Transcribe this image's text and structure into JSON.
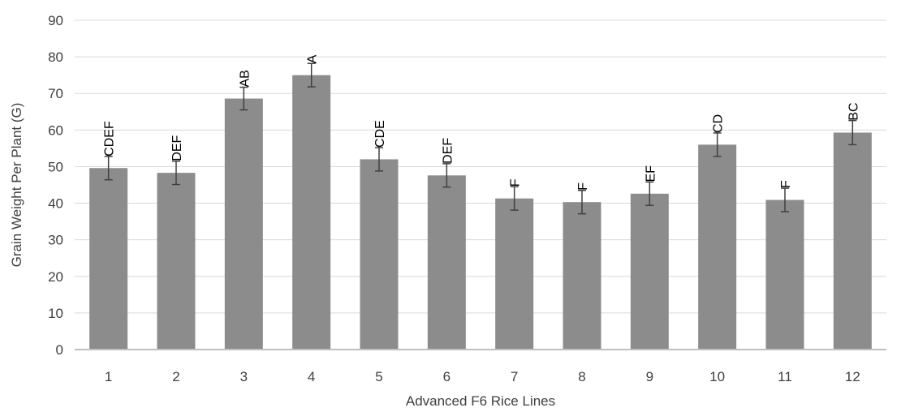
{
  "chart_data": {
    "type": "bar",
    "title": "",
    "xlabel": "Advanced F6 Rice Lines",
    "ylabel": "Grain Weight Per Plant (G)",
    "ylim": [
      0,
      90
    ],
    "yticks": [
      0,
      10,
      20,
      30,
      40,
      50,
      60,
      70,
      80,
      90
    ],
    "grid": true,
    "categories": [
      "1",
      "2",
      "3",
      "4",
      "5",
      "6",
      "7",
      "8",
      "9",
      "10",
      "11",
      "12"
    ],
    "values": [
      49.6,
      48.3,
      68.6,
      75.0,
      52.0,
      47.6,
      41.3,
      40.3,
      42.6,
      56.0,
      40.9,
      59.3
    ],
    "errors": [
      3.2,
      3.2,
      3.1,
      3.2,
      3.2,
      3.2,
      3.2,
      3.2,
      3.2,
      3.2,
      3.2,
      3.3
    ],
    "significance_labels": [
      "CDEF",
      "DEF",
      "AB",
      "A",
      "CDE",
      "DEF",
      "F",
      "F",
      "EF",
      "CD",
      "F",
      "BC"
    ],
    "colors": {
      "bar": "#8c8c8c",
      "error_bar": "#404040",
      "grid": "#d9d9d9",
      "axis": "#bfbfbf",
      "text": "#404040"
    }
  }
}
